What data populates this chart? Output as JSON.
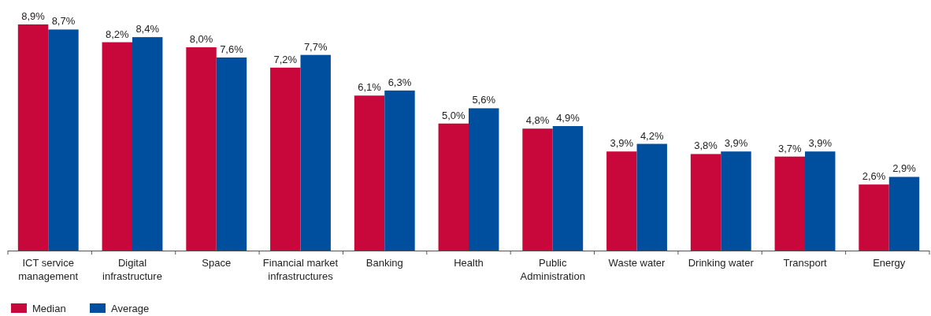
{
  "chart_data": {
    "type": "bar",
    "categories": [
      "ICT service management",
      "Digital infrastructure",
      "Space",
      "Financial market infrastructures",
      "Banking",
      "Health",
      "Public Administration",
      "Waste water",
      "Drinking water",
      "Transport",
      "Energy"
    ],
    "series": [
      {
        "name": "Median",
        "color": "#c8073a",
        "values": [
          8.9,
          8.2,
          8.0,
          7.2,
          6.1,
          5.0,
          4.8,
          3.9,
          3.8,
          3.7,
          2.6
        ],
        "value_labels": [
          "8,9%",
          "8,2%",
          "8,0%",
          "7,2%",
          "6,1%",
          "5,0%",
          "4,8%",
          "3,9%",
          "3,8%",
          "3,7%",
          "2,6%"
        ]
      },
      {
        "name": "Average",
        "color": "#004f9f",
        "values": [
          8.7,
          8.4,
          7.6,
          7.7,
          6.3,
          5.6,
          4.9,
          4.2,
          3.9,
          3.9,
          2.9
        ],
        "value_labels": [
          "8,7%",
          "8,4%",
          "7,6%",
          "7,7%",
          "6,3%",
          "5,6%",
          "4,9%",
          "4,2%",
          "3,9%",
          "3,9%",
          "2,9%"
        ]
      }
    ],
    "legend": "bottom left"
  }
}
